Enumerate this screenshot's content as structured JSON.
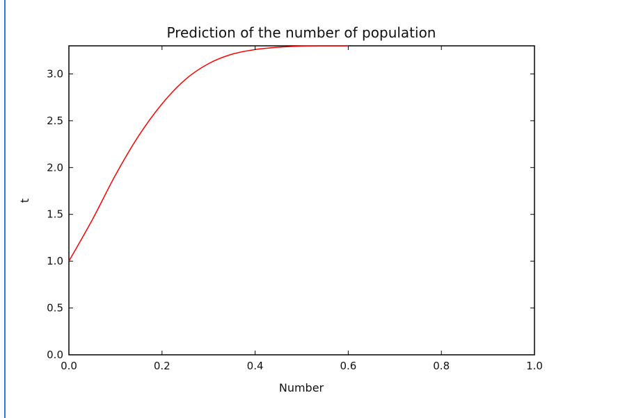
{
  "chart_data": {
    "type": "line",
    "title": "Prediction of the number of population",
    "xlabel": "Number",
    "ylabel": "t",
    "xlim": [
      0.0,
      1.0
    ],
    "ylim": [
      0.0,
      3.3
    ],
    "xticks": [
      0.0,
      0.2,
      0.4,
      0.6,
      0.8,
      1.0
    ],
    "xtick_labels": [
      "0.0",
      "0.2",
      "0.4",
      "0.6",
      "0.8",
      "1.0"
    ],
    "yticks": [
      0.0,
      0.5,
      1.0,
      1.5,
      2.0,
      2.5,
      3.0
    ],
    "ytick_labels": [
      "0.0",
      "0.5",
      "1.0",
      "1.5",
      "2.0",
      "2.5",
      "3.0"
    ],
    "grid": false,
    "series": [
      {
        "color": "#ff0000",
        "x": [
          0.0,
          0.05,
          0.1,
          0.15,
          0.2,
          0.25,
          0.3,
          0.35,
          0.4,
          0.45,
          0.5,
          0.55,
          0.6
        ],
        "y": [
          1.0,
          1.44,
          1.92,
          2.34,
          2.68,
          2.94,
          3.11,
          3.21,
          3.26,
          3.285,
          3.297,
          3.3,
          3.3
        ]
      }
    ]
  }
}
